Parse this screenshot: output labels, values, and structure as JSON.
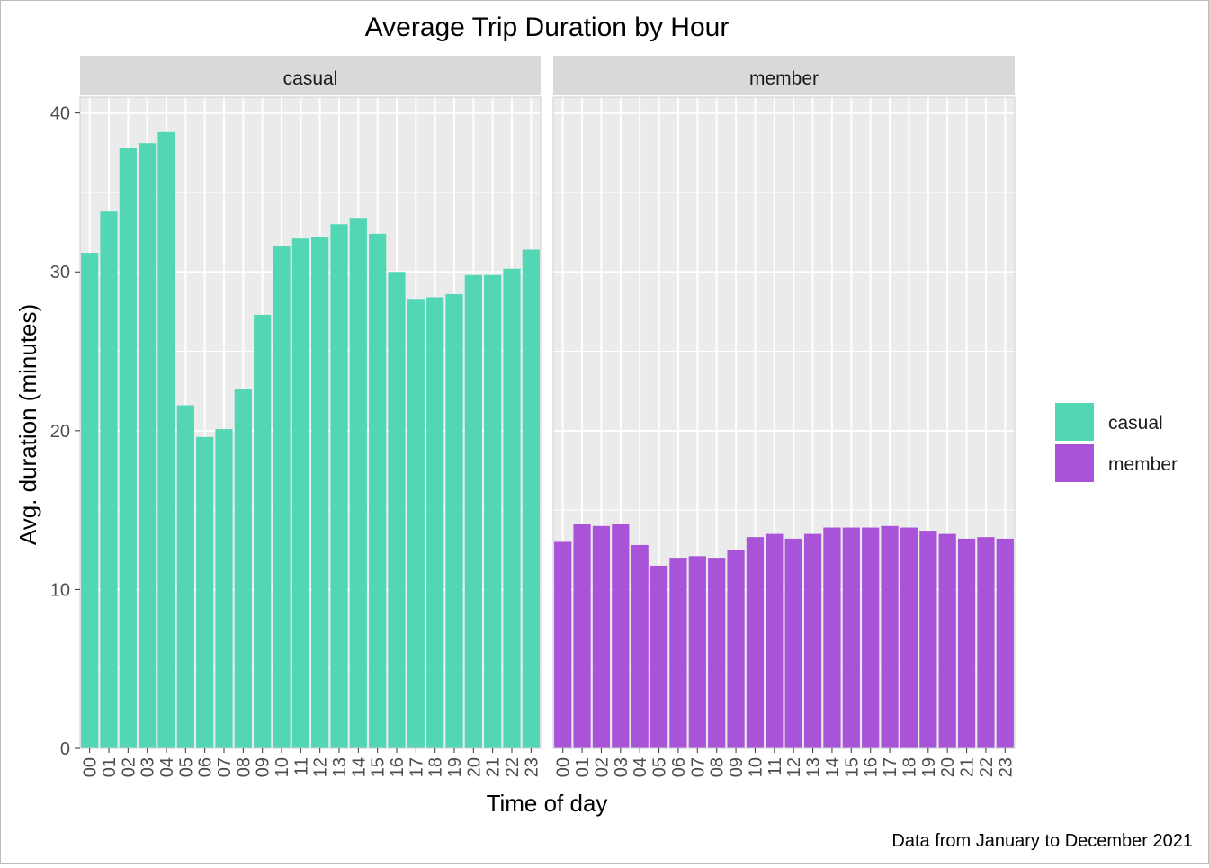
{
  "chart_data": {
    "type": "bar",
    "title": "Average Trip Duration by Hour",
    "xlabel": "Time of day",
    "ylabel": "Avg. duration (minutes)",
    "caption": "Data from January to December 2021",
    "ylim": [
      0,
      41
    ],
    "y_ticks": [
      0,
      10,
      20,
      30,
      40
    ],
    "grid": true,
    "legend_position": "right",
    "categories": [
      "00",
      "01",
      "02",
      "03",
      "04",
      "05",
      "06",
      "07",
      "08",
      "09",
      "10",
      "11",
      "12",
      "13",
      "14",
      "15",
      "16",
      "17",
      "18",
      "19",
      "20",
      "21",
      "22",
      "23"
    ],
    "series": [
      {
        "name": "casual",
        "color": "#52D6B4",
        "values": [
          31.2,
          33.8,
          37.8,
          38.1,
          38.8,
          21.6,
          19.6,
          20.1,
          22.6,
          27.3,
          31.6,
          32.1,
          32.2,
          33.0,
          33.4,
          32.4,
          30.0,
          28.3,
          28.4,
          28.6,
          29.8,
          29.8,
          30.2,
          31.4
        ]
      },
      {
        "name": "member",
        "color": "#A853D8",
        "values": [
          13.0,
          14.1,
          14.0,
          14.1,
          12.8,
          11.5,
          12.0,
          12.1,
          12.0,
          12.5,
          13.3,
          13.5,
          13.2,
          13.5,
          13.9,
          13.9,
          13.9,
          14.0,
          13.9,
          13.7,
          13.5,
          13.2,
          13.3,
          13.2
        ]
      }
    ]
  }
}
